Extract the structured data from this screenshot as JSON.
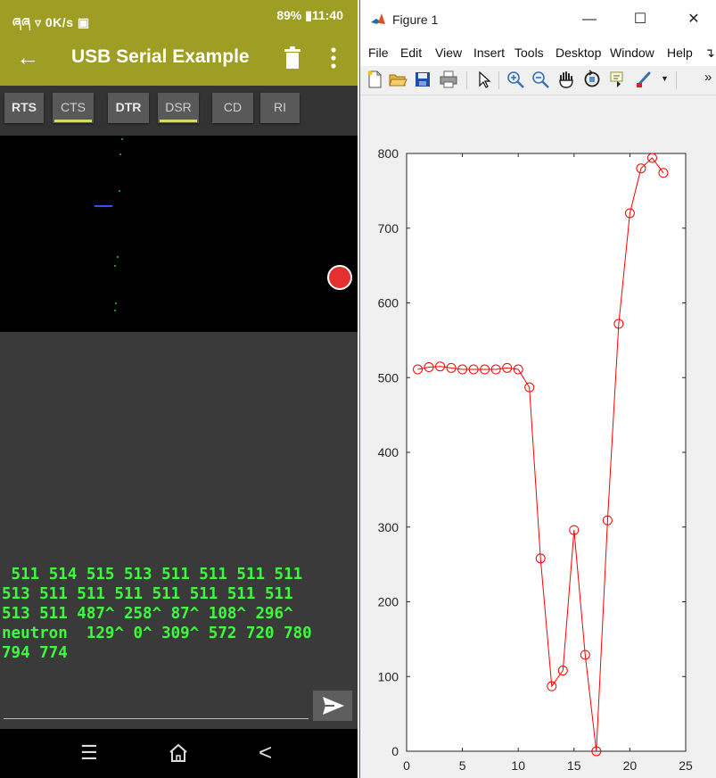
{
  "phone": {
    "status": {
      "left": "ཞཞ ▿ 0K/s ▣",
      "right": "89% ▮11:40"
    },
    "appbar": {
      "back_icon": "←",
      "title": "USB Serial Example",
      "trash_icon": "trash-icon",
      "more_icon": "more-vert-icon"
    },
    "controls": [
      {
        "label": "RTS",
        "active": true
      },
      {
        "label": "CTS",
        "active": false
      },
      {
        "label": "DTR",
        "active": true
      },
      {
        "label": "DSR",
        "active": false
      },
      {
        "label": "CD",
        "active": false
      },
      {
        "label": "RI",
        "active": false
      }
    ],
    "terminal": {
      "text": " 511 514 515 513 511 511 511 511\n513 511 511 511 511 511 511 511\n513 511 487^ 258^ 87^ 108^ 296^\nneutron  129^ 0^ 309^ 572 720 780\n794 774"
    },
    "input": {
      "value": "",
      "placeholder": ""
    },
    "send_icon": "send-icon",
    "nav": {
      "menu_icon": "☰",
      "home_icon": "home-icon",
      "back_icon": "<"
    }
  },
  "figure": {
    "window_title": "Figure 1",
    "controls": {
      "minimize": "—",
      "maximize": "☐",
      "close": "✕"
    },
    "menu": [
      "File",
      "Edit",
      "View",
      "Insert",
      "Tools",
      "Desktop",
      "Window",
      "Help"
    ],
    "menu_overflow": "↴",
    "toolbar_overflow": "»",
    "toolbar": [
      "new-file-icon",
      "open-folder-icon",
      "save-icon",
      "print-icon",
      "pointer-icon",
      "zoom-in-icon",
      "zoom-out-icon",
      "pan-hand-icon",
      "rotate-3d-icon",
      "data-cursor-icon",
      "brush-icon"
    ]
  },
  "chart_data": {
    "type": "line",
    "title": "",
    "xlabel": "",
    "ylabel": "",
    "x": [
      1,
      2,
      3,
      4,
      5,
      6,
      7,
      8,
      9,
      10,
      11,
      12,
      13,
      14,
      15,
      16,
      17,
      18,
      19,
      20,
      21,
      22,
      23
    ],
    "series": [
      {
        "values": [
          511,
          514,
          515,
          513,
          511,
          511,
          511,
          511,
          513,
          511,
          487,
          258,
          87,
          108,
          296,
          129,
          0,
          309,
          572,
          720,
          780,
          794,
          774
        ],
        "color": "#ff0000",
        "marker": "circle"
      }
    ],
    "xlim": [
      0,
      25
    ],
    "ylim": [
      0,
      800
    ],
    "xticks": [
      0,
      5,
      10,
      15,
      20,
      25
    ],
    "yticks": [
      0,
      100,
      200,
      300,
      400,
      500,
      600,
      700,
      800
    ],
    "grid": false,
    "legend": "none"
  }
}
